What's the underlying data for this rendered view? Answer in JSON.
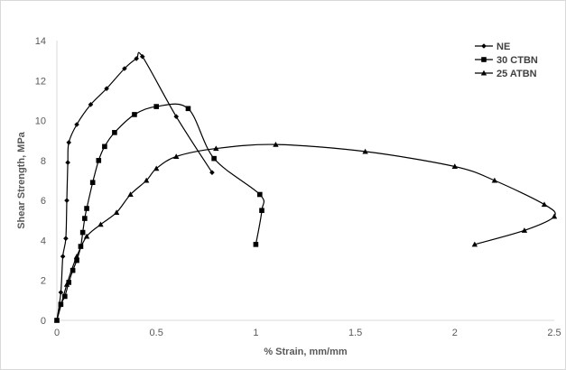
{
  "chart_data": {
    "type": "line",
    "title": "",
    "xlabel": "% Strain, mm/mm",
    "ylabel": "Shear Strength, MPa",
    "xlim": [
      0,
      2.5
    ],
    "ylim": [
      0,
      14
    ],
    "xticks": [
      0,
      0.5,
      1,
      1.5,
      2,
      2.5
    ],
    "xtick_labels": [
      "0",
      "0.5",
      "1",
      "1.5",
      "2",
      "2.5"
    ],
    "yticks": [
      0,
      2,
      4,
      6,
      8,
      10,
      12,
      14
    ],
    "ytick_labels": [
      "0",
      "2",
      "4",
      "6",
      "8",
      "10",
      "12",
      "14"
    ],
    "grid": false,
    "legend_position": "top-right",
    "line_color": "#000000",
    "series": [
      {
        "name": "NE",
        "marker": "diamond",
        "x": [
          0.0,
          0.02,
          0.03,
          0.045,
          0.05,
          0.055,
          0.06,
          0.1,
          0.17,
          0.25,
          0.34,
          0.4,
          0.43,
          0.6,
          0.78
        ],
        "y": [
          0.0,
          1.4,
          3.2,
          4.1,
          6.0,
          7.9,
          8.9,
          9.8,
          10.8,
          11.6,
          12.6,
          13.1,
          13.2,
          10.2,
          7.4
        ]
      },
      {
        "name": "30 CTBN",
        "marker": "square",
        "x": [
          0.0,
          0.02,
          0.04,
          0.06,
          0.08,
          0.1,
          0.12,
          0.13,
          0.14,
          0.15,
          0.18,
          0.21,
          0.24,
          0.29,
          0.39,
          0.5,
          0.66,
          0.79,
          1.02,
          1.03,
          1.0
        ],
        "y": [
          0.0,
          0.8,
          1.2,
          1.9,
          2.5,
          3.0,
          3.7,
          4.4,
          5.1,
          5.6,
          6.9,
          8.0,
          8.7,
          9.4,
          10.3,
          10.7,
          10.6,
          8.1,
          6.3,
          5.5,
          3.8
        ]
      },
      {
        "name": "25 ATBN",
        "marker": "triangle",
        "x": [
          0.0,
          0.05,
          0.1,
          0.15,
          0.22,
          0.3,
          0.37,
          0.45,
          0.5,
          0.6,
          0.8,
          1.1,
          1.55,
          2.0,
          2.2,
          2.45,
          2.5,
          2.35,
          2.1
        ],
        "y": [
          0.0,
          1.8,
          3.2,
          4.2,
          4.8,
          5.4,
          6.3,
          7.0,
          7.6,
          8.2,
          8.6,
          8.8,
          8.45,
          7.7,
          7.0,
          5.8,
          5.2,
          4.5,
          3.8
        ]
      }
    ]
  }
}
